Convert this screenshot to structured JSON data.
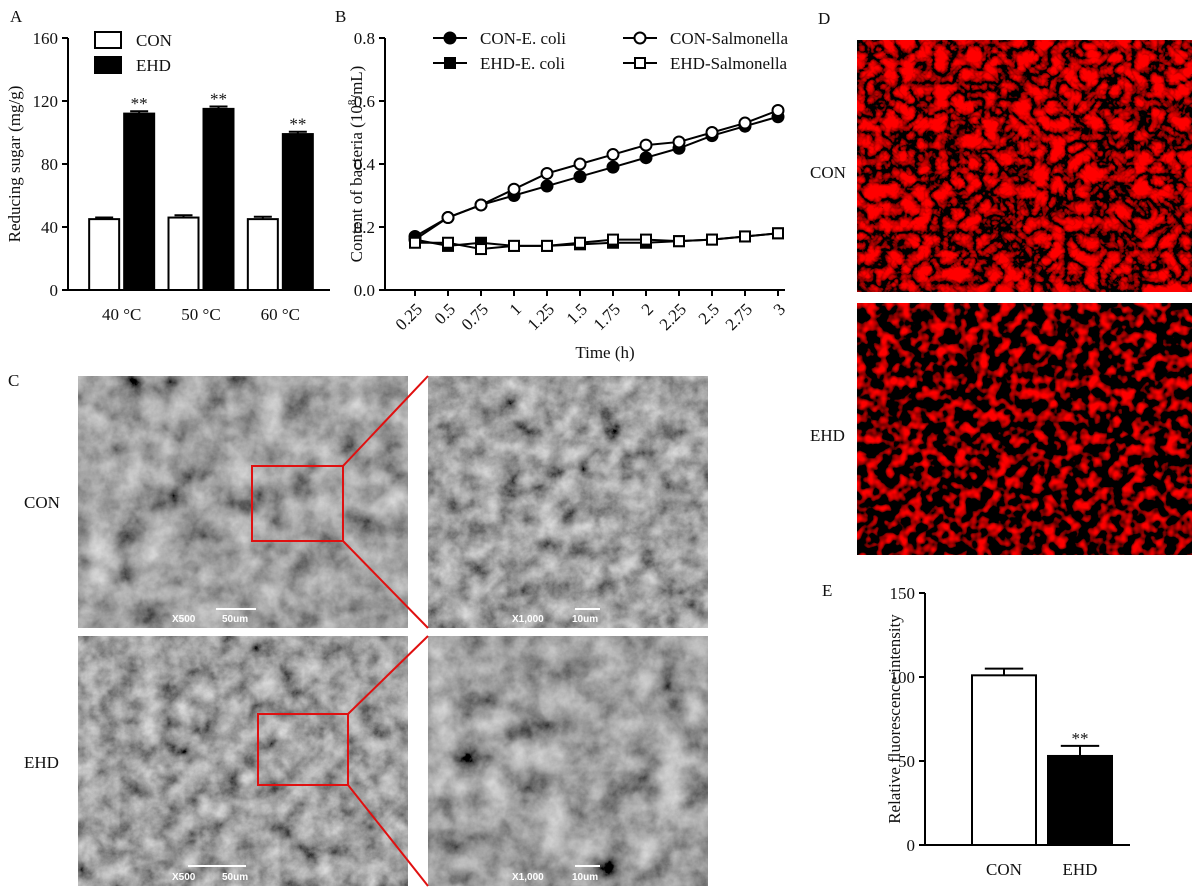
{
  "chart_data": [
    {
      "type": "bar",
      "panel": "A",
      "ylabel": "Reducing sugar (mg/g)",
      "categories": [
        "40 °C",
        "50 °C",
        "60 °C"
      ],
      "series": [
        {
          "name": "CON",
          "color": "#ffffff",
          "values": [
            45,
            46,
            45
          ],
          "errors": [
            1,
            1.5,
            1.5
          ]
        },
        {
          "name": "EHD",
          "color": "#000000",
          "values": [
            112,
            115,
            99
          ],
          "errors": [
            1.5,
            1.5,
            1.5
          ],
          "annotations": [
            "**",
            "**",
            "**"
          ]
        }
      ],
      "ylim": [
        0,
        160
      ],
      "yticks": [
        0,
        40,
        80,
        120,
        160
      ]
    },
    {
      "type": "line",
      "panel": "B",
      "ylabel": [
        "Content of bacteria (10",
        "8",
        "/mL)"
      ],
      "xlabel": "Time (h)",
      "x": [
        0.25,
        0.5,
        0.75,
        1,
        1.25,
        1.5,
        1.75,
        2,
        2.25,
        2.5,
        2.75,
        3
      ],
      "series": [
        {
          "name": "CON-E. coli",
          "color": "#000000",
          "marker": "filled-circle",
          "values": [
            0.17,
            0.23,
            0.27,
            0.3,
            0.33,
            0.36,
            0.39,
            0.42,
            0.45,
            0.49,
            0.52,
            0.55
          ]
        },
        {
          "name": "CON-Salmonella",
          "color": "#000000",
          "marker": "open-circle",
          "values": [
            0.16,
            0.23,
            0.27,
            0.32,
            0.37,
            0.4,
            0.43,
            0.46,
            0.47,
            0.5,
            0.53,
            0.57
          ]
        },
        {
          "name": "EHD-E. coli",
          "color": "#000000",
          "marker": "filled-square",
          "values": [
            0.16,
            0.14,
            0.15,
            0.14,
            0.14,
            0.145,
            0.15,
            0.15,
            0.155,
            0.16,
            0.17,
            0.18
          ]
        },
        {
          "name": "EHD-Salmonella",
          "color": "#000000",
          "marker": "open-square",
          "values": [
            0.15,
            0.15,
            0.13,
            0.14,
            0.14,
            0.15,
            0.16,
            0.16,
            0.155,
            0.16,
            0.17,
            0.18
          ]
        }
      ],
      "xlim": [
        0,
        3
      ],
      "xticks": [
        0.25,
        0.5,
        0.75,
        1,
        1.25,
        1.5,
        1.75,
        2,
        2.25,
        2.5,
        2.75,
        3
      ],
      "ylim": [
        0,
        0.8
      ],
      "yticks": [
        {
          "value": 0,
          "label": "0.0"
        },
        0.2,
        0.4,
        0.6,
        0.8
      ]
    },
    {
      "type": "bar",
      "panel": "E",
      "ylabel": "Relative fluorescence intensity",
      "categories": [
        "CON",
        "EHD"
      ],
      "series": [
        {
          "colors": [
            "#ffffff",
            "#000000"
          ],
          "values": [
            101,
            53
          ],
          "errors": [
            4,
            6
          ],
          "annotations": [
            null,
            "**"
          ]
        }
      ],
      "ylim": [
        0,
        150
      ],
      "yticks": [
        0,
        50,
        100,
        150
      ]
    }
  ],
  "sem": {
    "panel": "C",
    "rows": [
      {
        "label": "CON",
        "low_mag": "X500",
        "low_bar": "50um",
        "high_mag": "X1,000",
        "high_bar": "10um"
      },
      {
        "label": "EHD",
        "low_mag": "X500",
        "low_bar": "50um",
        "high_mag": "X1,000",
        "high_bar": "10um"
      }
    ]
  },
  "fluorescence": {
    "panel": "D",
    "rows": [
      "CON",
      "EHD"
    ]
  }
}
